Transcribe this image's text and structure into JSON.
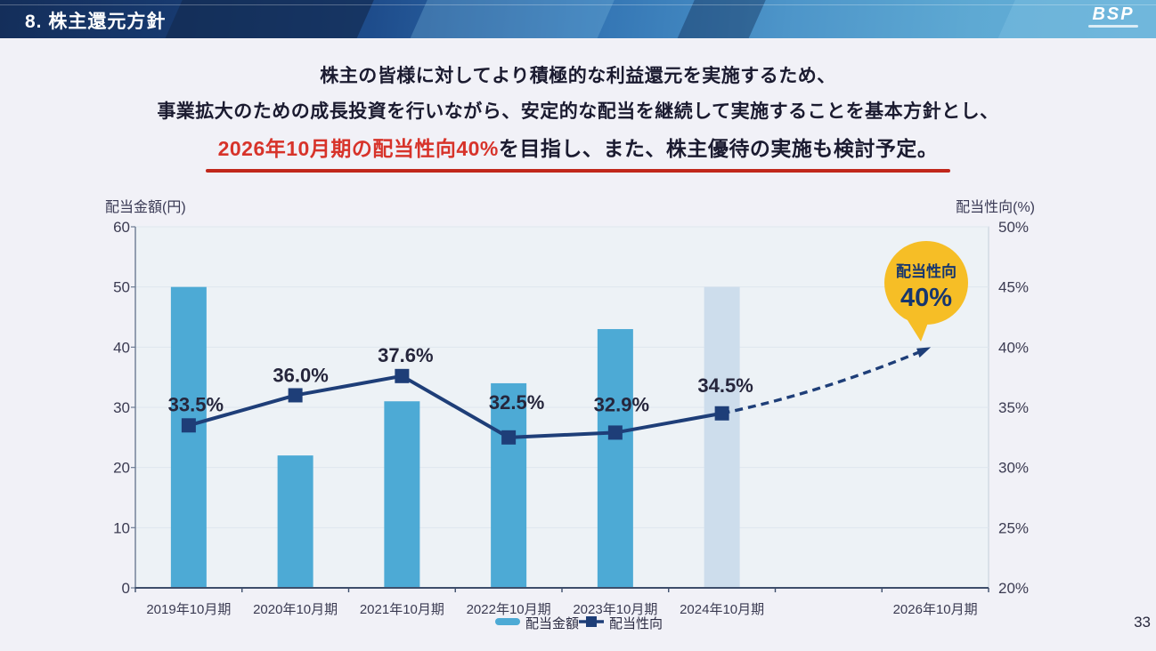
{
  "page_number": "33",
  "header": {
    "title": "8. 株主還元方針",
    "logo": "BSP"
  },
  "intro": {
    "line1": "株主の皆様に対してより積極的な利益還元を実施するため、",
    "line2": "事業拡大のための成長投資を行いながら、安定的な配当を継続して実施することを基本方針とし、",
    "line3_highlight": "2026年10月期の配当性向40%",
    "line3_rest": "を目指し、また、株主優待の実施も検討予定。",
    "highlight_color": "#D7332A",
    "underline_color": "#C1271B"
  },
  "chart_data": {
    "type": "bar",
    "combo": "bar+line",
    "categories": [
      "2019年10月期",
      "2020年10月期",
      "2021年10月期",
      "2022年10月期",
      "2023年10月期",
      "2024年10月期",
      "2026年10月期"
    ],
    "slots": [
      0,
      1,
      2,
      3,
      4,
      5,
      7
    ],
    "n_slots": 8,
    "series": [
      {
        "name": "配当金額",
        "type": "bar",
        "axis": "left",
        "values": [
          50,
          22,
          31,
          34,
          43,
          50,
          null
        ],
        "forecast_index": 5
      },
      {
        "name": "配当性向",
        "type": "line",
        "axis": "right",
        "values": [
          33.5,
          36.0,
          37.6,
          32.5,
          32.9,
          34.5,
          null
        ],
        "labels": [
          "33.5%",
          "36.0%",
          "37.6%",
          "32.5%",
          "32.9%",
          "34.5%"
        ],
        "projection": {
          "category": "2026年10月期",
          "value": 40,
          "style": "dashed-arrow"
        }
      }
    ],
    "left_axis": {
      "label": "配当金額(円)",
      "min": 0,
      "max": 60,
      "step": 10,
      "ticks": [
        "0",
        "10",
        "20",
        "30",
        "40",
        "50",
        "60"
      ]
    },
    "right_axis": {
      "label": "配当性向(%)",
      "min": 20,
      "max": 50,
      "step": 5,
      "ticks": [
        "20%",
        "25%",
        "30%",
        "35%",
        "40%",
        "45%",
        "50%"
      ]
    },
    "annotation": {
      "line1": "配当性向",
      "line2": "40%"
    },
    "legend": [
      "配当金額",
      "配当性向"
    ],
    "legend_position": "bottom-center",
    "grid": true,
    "colors": {
      "bar": "#4DAAD5",
      "bar_forecast": "#CDDDEC",
      "line": "#1E3E78",
      "badge": "#F6BE26",
      "badge_text": "#17366E",
      "plot_bg": "#EDF2F6",
      "gridline": "#DEE6EE",
      "data_label": "#26263C"
    }
  }
}
